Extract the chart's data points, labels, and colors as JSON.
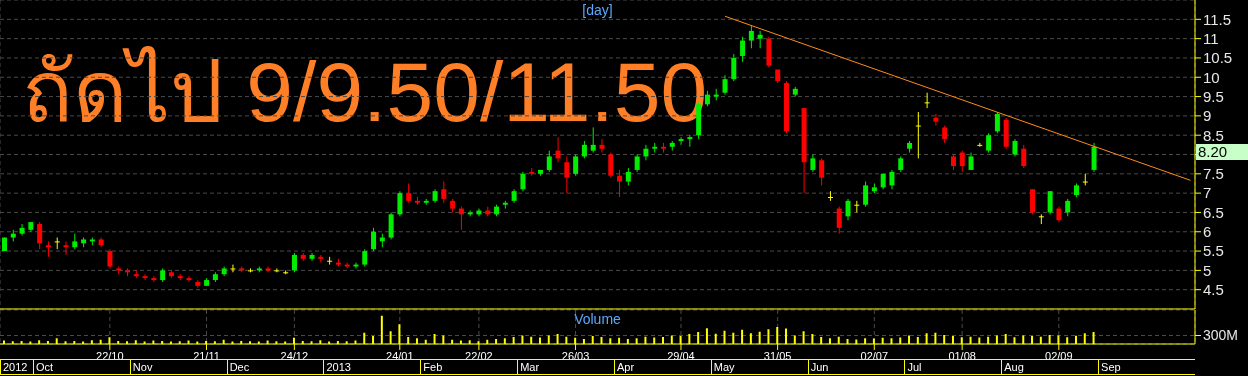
{
  "chart_data": [
    {
      "type": "candlestick",
      "title": "[day]",
      "categories": [
        null,
        null,
        null,
        null,
        null,
        null,
        null,
        null,
        null,
        null,
        null,
        null,
        null,
        null,
        null,
        null,
        null,
        null,
        null,
        null,
        null,
        null,
        null,
        null,
        null,
        null,
        null,
        null,
        null,
        null,
        null,
        null,
        null,
        null,
        null,
        null,
        null,
        null,
        null,
        null,
        null,
        null,
        null,
        null,
        null,
        null,
        null,
        null,
        null,
        null,
        null,
        null,
        null,
        null,
        null,
        null,
        null,
        null,
        null,
        null,
        null,
        null,
        null,
        null,
        null,
        null,
        null,
        null,
        null,
        null,
        null,
        null,
        null,
        null,
        null,
        null,
        null,
        null,
        null,
        null,
        null,
        null,
        null,
        null,
        null,
        null,
        null,
        null,
        null,
        null,
        null,
        null,
        null,
        null,
        null,
        null,
        null,
        null,
        null,
        null,
        null,
        null,
        null,
        null,
        null,
        null,
        null,
        null,
        null,
        null,
        null,
        null,
        null,
        null,
        null,
        null,
        null,
        null,
        null,
        null,
        null,
        null,
        null,
        null,
        null,
        null,
        null,
        null,
        null,
        null,
        null,
        null,
        null,
        null,
        null,
        null
      ],
      "ohlc": [
        [
          5.5,
          5.85,
          5.5,
          5.85
        ],
        [
          5.85,
          6.05,
          5.75,
          5.95
        ],
        [
          5.95,
          6.2,
          5.9,
          6.1
        ],
        [
          6.05,
          6.25,
          6.0,
          6.25
        ],
        [
          6.2,
          6.25,
          5.55,
          5.7
        ],
        [
          5.65,
          5.75,
          5.35,
          5.6
        ],
        [
          5.75,
          5.85,
          5.55,
          5.75
        ],
        [
          5.65,
          5.75,
          5.4,
          5.6
        ],
        [
          5.6,
          5.95,
          5.55,
          5.75
        ],
        [
          5.7,
          5.85,
          5.6,
          5.8
        ],
        [
          5.75,
          5.85,
          5.65,
          5.8
        ],
        [
          5.8,
          5.85,
          5.6,
          5.65
        ],
        [
          5.5,
          5.55,
          5.05,
          5.1
        ],
        [
          5.05,
          5.1,
          4.9,
          5.0
        ],
        [
          5.0,
          5.05,
          4.85,
          4.95
        ],
        [
          4.9,
          5.0,
          4.8,
          4.85
        ],
        [
          4.85,
          4.9,
          4.75,
          4.8
        ],
        [
          4.8,
          4.85,
          4.7,
          4.75
        ],
        [
          4.75,
          5.05,
          4.7,
          5.0
        ],
        [
          4.95,
          5.0,
          4.8,
          4.85
        ],
        [
          4.85,
          4.9,
          4.75,
          4.8
        ],
        [
          4.8,
          4.85,
          4.7,
          4.75
        ],
        [
          4.7,
          4.75,
          4.55,
          4.6
        ],
        [
          4.6,
          4.8,
          4.6,
          4.75
        ],
        [
          4.75,
          4.95,
          4.7,
          4.9
        ],
        [
          4.9,
          5.1,
          4.85,
          5.05
        ],
        [
          5.05,
          5.15,
          4.95,
          5.05
        ],
        [
          5.05,
          5.1,
          4.95,
          5.0
        ],
        [
          5.0,
          5.05,
          4.95,
          5.0
        ],
        [
          5.0,
          5.1,
          4.95,
          5.05
        ],
        [
          5.05,
          5.1,
          4.95,
          5.0
        ],
        [
          5.0,
          5.05,
          4.95,
          5.0
        ],
        [
          4.95,
          5.0,
          4.9,
          4.95
        ],
        [
          5.0,
          5.45,
          4.95,
          5.4
        ],
        [
          5.4,
          5.45,
          5.25,
          5.3
        ],
        [
          5.3,
          5.45,
          5.25,
          5.4
        ],
        [
          5.35,
          5.4,
          5.2,
          5.3
        ],
        [
          5.25,
          5.35,
          5.15,
          5.25
        ],
        [
          5.2,
          5.3,
          5.1,
          5.15
        ],
        [
          5.15,
          5.2,
          5.05,
          5.1
        ],
        [
          5.1,
          5.2,
          5.05,
          5.15
        ],
        [
          5.15,
          5.55,
          5.1,
          5.5
        ],
        [
          5.55,
          6.1,
          5.5,
          6.0
        ],
        [
          5.75,
          5.95,
          5.6,
          5.85
        ],
        [
          5.85,
          6.5,
          5.8,
          6.45
        ],
        [
          6.45,
          7.05,
          6.4,
          7.0
        ],
        [
          7.0,
          7.25,
          6.75,
          6.8
        ],
        [
          6.8,
          6.9,
          6.7,
          6.75
        ],
        [
          6.75,
          6.85,
          6.7,
          6.8
        ],
        [
          6.8,
          7.1,
          6.75,
          7.05
        ],
        [
          7.1,
          7.3,
          6.75,
          6.85
        ],
        [
          6.8,
          6.85,
          6.5,
          6.6
        ],
        [
          6.6,
          6.65,
          6.05,
          6.45
        ],
        [
          6.45,
          6.55,
          6.4,
          6.5
        ],
        [
          6.45,
          6.6,
          6.4,
          6.55
        ],
        [
          6.55,
          6.65,
          6.4,
          6.45
        ],
        [
          6.45,
          6.7,
          6.4,
          6.65
        ],
        [
          6.7,
          6.8,
          6.6,
          6.75
        ],
        [
          6.8,
          7.1,
          6.75,
          7.05
        ],
        [
          7.1,
          7.55,
          7.05,
          7.5
        ],
        [
          7.55,
          7.65,
          7.45,
          7.5
        ],
        [
          7.5,
          7.6,
          7.45,
          7.6
        ],
        [
          7.6,
          8.1,
          7.55,
          7.95
        ],
        [
          8.1,
          8.45,
          7.8,
          7.9
        ],
        [
          7.8,
          7.95,
          7.0,
          7.4
        ],
        [
          7.5,
          8.0,
          7.45,
          7.95
        ],
        [
          7.95,
          8.35,
          7.9,
          8.25
        ],
        [
          8.1,
          8.7,
          8.05,
          8.25
        ],
        [
          8.25,
          8.4,
          8.05,
          8.15
        ],
        [
          8.0,
          8.05,
          7.4,
          7.45
        ],
        [
          7.45,
          7.6,
          6.9,
          7.3
        ],
        [
          7.3,
          7.65,
          7.2,
          7.55
        ],
        [
          7.6,
          8.0,
          7.55,
          7.95
        ],
        [
          7.95,
          8.25,
          7.85,
          8.15
        ],
        [
          8.15,
          8.3,
          8.05,
          8.2
        ],
        [
          8.2,
          8.3,
          8.05,
          8.15
        ],
        [
          8.2,
          8.35,
          8.1,
          8.3
        ],
        [
          8.35,
          8.45,
          8.25,
          8.4
        ],
        [
          8.4,
          8.5,
          8.2,
          8.45
        ],
        [
          8.5,
          9.35,
          8.4,
          9.3
        ],
        [
          9.3,
          9.65,
          9.25,
          9.55
        ],
        [
          9.5,
          9.7,
          9.4,
          9.55
        ],
        [
          9.6,
          10.05,
          9.55,
          9.95
        ],
        [
          9.95,
          10.6,
          9.9,
          10.5
        ],
        [
          10.55,
          11.05,
          10.4,
          10.95
        ],
        [
          10.95,
          11.35,
          10.75,
          11.2
        ],
        [
          11.0,
          11.2,
          10.75,
          11.1
        ],
        [
          11.0,
          11.05,
          10.25,
          10.3
        ],
        [
          10.2,
          10.2,
          9.85,
          9.9
        ],
        [
          9.85,
          9.9,
          8.55,
          8.6
        ],
        [
          9.55,
          9.75,
          9.5,
          9.7
        ],
        [
          9.2,
          9.2,
          7.0,
          7.8
        ],
        [
          7.6,
          8.0,
          7.55,
          7.9
        ],
        [
          7.85,
          7.9,
          7.2,
          7.4
        ],
        [
          6.9,
          7.05,
          6.8,
          6.9
        ],
        [
          6.6,
          6.65,
          5.95,
          6.1
        ],
        [
          6.4,
          6.85,
          6.3,
          6.8
        ],
        [
          6.7,
          6.8,
          6.5,
          6.7
        ],
        [
          6.7,
          7.3,
          6.65,
          7.2
        ],
        [
          7.05,
          7.25,
          7.0,
          7.15
        ],
        [
          7.15,
          7.5,
          7.1,
          7.5
        ],
        [
          7.2,
          7.6,
          7.1,
          7.55
        ],
        [
          7.6,
          7.95,
          7.55,
          7.9
        ],
        [
          8.15,
          8.35,
          8.05,
          8.3
        ],
        [
          8.75,
          9.1,
          7.9,
          8.75
        ],
        [
          9.35,
          9.6,
          9.2,
          9.35
        ],
        [
          8.95,
          9.05,
          8.75,
          8.85
        ],
        [
          8.7,
          8.75,
          8.3,
          8.4
        ],
        [
          7.95,
          8.0,
          7.6,
          7.7
        ],
        [
          8.05,
          8.1,
          7.55,
          7.7
        ],
        [
          7.6,
          8.05,
          7.6,
          7.95
        ],
        [
          8.25,
          8.3,
          8.2,
          8.25
        ],
        [
          8.1,
          8.55,
          8.05,
          8.5
        ],
        [
          8.6,
          9.1,
          8.55,
          9.05
        ],
        [
          8.9,
          8.95,
          8.15,
          8.2
        ],
        [
          8.0,
          8.4,
          7.95,
          8.35
        ],
        [
          8.15,
          8.25,
          7.65,
          7.7
        ],
        [
          7.1,
          7.1,
          6.45,
          6.5
        ],
        [
          6.4,
          6.45,
          6.2,
          6.4
        ],
        [
          6.5,
          7.05,
          6.45,
          7.05
        ],
        [
          6.6,
          6.65,
          6.25,
          6.3
        ],
        [
          6.5,
          6.85,
          6.4,
          6.8
        ],
        [
          6.95,
          7.25,
          6.9,
          7.2
        ],
        [
          7.3,
          7.5,
          7.2,
          7.3
        ],
        [
          7.6,
          8.3,
          7.55,
          8.2
        ],
        null,
        null,
        null,
        null,
        null,
        null,
        null,
        null,
        null,
        null,
        null
      ],
      "colors": [
        "#00ee00",
        "#00ee00",
        "#00ee00",
        "#00ee00",
        "#ff0000",
        "#ff0000",
        "#ffff00",
        "#ff0000",
        "#00ee00",
        "#00ee00",
        "#00ee00",
        "#ff0000",
        "#ff0000",
        "#ff0000",
        "#ff0000",
        "#ff0000",
        "#ff0000",
        "#ff0000",
        "#00ee00",
        "#ff0000",
        "#ff0000",
        "#ff0000",
        "#ff0000",
        "#00ee00",
        "#00ee00",
        "#00ee00",
        "#ffff00",
        "#ff0000",
        "#ffff00",
        "#00ee00",
        "#ff0000",
        "#ffff00",
        "#ffff00",
        "#00ee00",
        "#ff0000",
        "#00ee00",
        "#ff0000",
        "#ffff00",
        "#ff0000",
        "#ff0000",
        "#00ee00",
        "#00ee00",
        "#00ee00",
        "#00ee00",
        "#00ee00",
        "#00ee00",
        "#ff0000",
        "#ff0000",
        "#00ee00",
        "#00ee00",
        "#ff0000",
        "#ff0000",
        "#ff0000",
        "#00ee00",
        "#00ee00",
        "#ff0000",
        "#00ee00",
        "#00ee00",
        "#00ee00",
        "#00ee00",
        "#ff0000",
        "#00ee00",
        "#00ee00",
        "#ff0000",
        "#ff0000",
        "#00ee00",
        "#00ee00",
        "#00ee00",
        "#ff0000",
        "#ff0000",
        "#ff0000",
        "#00ee00",
        "#00ee00",
        "#00ee00",
        "#00ee00",
        "#ff0000",
        "#00ee00",
        "#00ee00",
        "#00ee00",
        "#00ee00",
        "#00ee00",
        "#00ee00",
        "#00ee00",
        "#00ee00",
        "#00ee00",
        "#00ee00",
        "#00ee00",
        "#ff0000",
        "#ff0000",
        "#ff0000",
        "#00ee00",
        "#ff0000",
        "#00ee00",
        "#ff0000",
        "#ffff00",
        "#ff0000",
        "#00ee00",
        "#ffff00",
        "#00ee00",
        "#00ee00",
        "#00ee00",
        "#00ee00",
        "#00ee00",
        "#00ee00",
        "#ffff00",
        "#ffff00",
        "#ff0000",
        "#ff0000",
        "#ff0000",
        "#ff0000",
        "#00ee00",
        "#ffff00",
        "#00ee00",
        "#00ee00",
        "#ff0000",
        "#00ee00",
        "#ff0000",
        "#ff0000",
        "#ffff00",
        "#00ee00",
        "#ff0000",
        "#00ee00",
        "#00ee00",
        "#ffff00",
        "#00ee00",
        null,
        null,
        null,
        null,
        null,
        null,
        null,
        null,
        null,
        null,
        null
      ],
      "series": [
        {
          "type": "line",
          "color": "#ff8c1a",
          "values": [
            null,
            null,
            null,
            null,
            null,
            null,
            null,
            null,
            null,
            null,
            null,
            null,
            null,
            null,
            null,
            null,
            null,
            null,
            null,
            null,
            null,
            null,
            null,
            null,
            null,
            null,
            null,
            null,
            null,
            null,
            null,
            null,
            null,
            null,
            null,
            null,
            null,
            null,
            null,
            null,
            null,
            null,
            null,
            null,
            null,
            null,
            null,
            null,
            null,
            null,
            null,
            null,
            null,
            null,
            null,
            null,
            null,
            null,
            null,
            null,
            null,
            null,
            null,
            null,
            null,
            null,
            null,
            null,
            null,
            null,
            null,
            null,
            null,
            null,
            null,
            null,
            null,
            null,
            null,
            null,
            null,
            null,
            11.58,
            null,
            null,
            null,
            null,
            null,
            null,
            null,
            null,
            null,
            null,
            null,
            null,
            null,
            null,
            null,
            null,
            null,
            null,
            null,
            null,
            null,
            null,
            null,
            null,
            null,
            null,
            null,
            null,
            null,
            null,
            null,
            null,
            null,
            null,
            null,
            null,
            null,
            null,
            null,
            null,
            null,
            null,
            null,
            null,
            null,
            null,
            null,
            null,
            null,
            null,
            null,
            null,
            7.33
          ]
        }
      ],
      "ylim": [
        4.0,
        12.0
      ],
      "yticks": [
        4.5,
        5,
        5.5,
        6,
        6.5,
        7,
        7.5,
        {
          "value": 8,
          "label": null
        },
        8.5,
        9,
        9.5,
        10,
        10.5,
        11,
        11.5
      ],
      "grid": true,
      "tick_labels": "y",
      "annotations": [
        "ถัดไป 9/9.50/11.50",
        "8.20"
      ]
    },
    {
      "type": "bar",
      "title": "Volume",
      "categories": [
        null,
        null,
        null,
        null,
        null,
        null,
        null,
        null,
        null,
        null,
        null,
        null,
        "22/10",
        null,
        null,
        null,
        null,
        null,
        null,
        null,
        null,
        null,
        null,
        "21/11",
        null,
        null,
        null,
        null,
        null,
        null,
        null,
        null,
        null,
        "24/12",
        null,
        null,
        null,
        null,
        null,
        null,
        null,
        null,
        null,
        null,
        null,
        "24/01",
        null,
        null,
        null,
        null,
        null,
        null,
        null,
        null,
        "22/02",
        null,
        null,
        null,
        null,
        null,
        null,
        null,
        null,
        null,
        null,
        "26/03",
        null,
        null,
        null,
        null,
        null,
        null,
        null,
        null,
        null,
        null,
        null,
        "29/04",
        null,
        null,
        null,
        null,
        null,
        null,
        null,
        null,
        null,
        null,
        "31/05",
        null,
        null,
        null,
        null,
        null,
        null,
        null,
        null,
        null,
        null,
        "02/07",
        null,
        null,
        null,
        null,
        null,
        null,
        null,
        null,
        null,
        "01/08",
        null,
        null,
        null,
        null,
        null,
        null,
        null,
        null,
        null,
        null,
        "02/09",
        null,
        null,
        null,
        null,
        null,
        null,
        null,
        null,
        null,
        null,
        null,
        null,
        null,
        null,
        null
      ],
      "series": [
        {
          "color": "#ffff00",
          "values": [
            120,
            100,
            110,
            90,
            130,
            110,
            200,
            100,
            110,
            90,
            130,
            150,
            240,
            110,
            100,
            130,
            90,
            120,
            110,
            90,
            100,
            120,
            90,
            110,
            100,
            150,
            90,
            110,
            100,
            90,
            120,
            100,
            90,
            220,
            110,
            100,
            130,
            90,
            110,
            100,
            120,
            400,
            280,
            1000,
            450,
            700,
            250,
            200,
            150,
            350,
            300,
            150,
            120,
            130,
            100,
            150,
            180,
            200,
            250,
            300,
            260,
            230,
            300,
            350,
            260,
            220,
            180,
            280,
            250,
            200,
            220,
            180,
            200,
            260,
            230,
            250,
            300,
            280,
            350,
            420,
            560,
            360,
            470,
            400,
            500,
            380,
            430,
            520,
            600,
            550,
            300,
            450,
            350,
            250,
            200,
            260,
            180,
            160,
            200,
            190,
            220,
            200,
            230,
            300,
            250,
            380,
            400,
            320,
            280,
            240,
            260,
            230,
            260,
            300,
            350,
            240,
            300,
            280,
            260,
            320,
            300,
            240,
            290,
            380,
            420,
            null,
            null,
            null,
            null,
            null,
            null,
            null,
            null,
            null,
            null,
            null
          ]
        }
      ],
      "ylim": [
        0,
        1200
      ],
      "yticks": [
        {
          "value": 300,
          "label": "300M"
        }
      ],
      "grid": true,
      "annotations": [
        "2012",
        "Oct",
        "Nov",
        "Dec",
        "2013",
        "Feb",
        "Mar",
        "Apr",
        "May",
        "Jun",
        "Jul",
        "Aug",
        "Sep"
      ]
    }
  ]
}
